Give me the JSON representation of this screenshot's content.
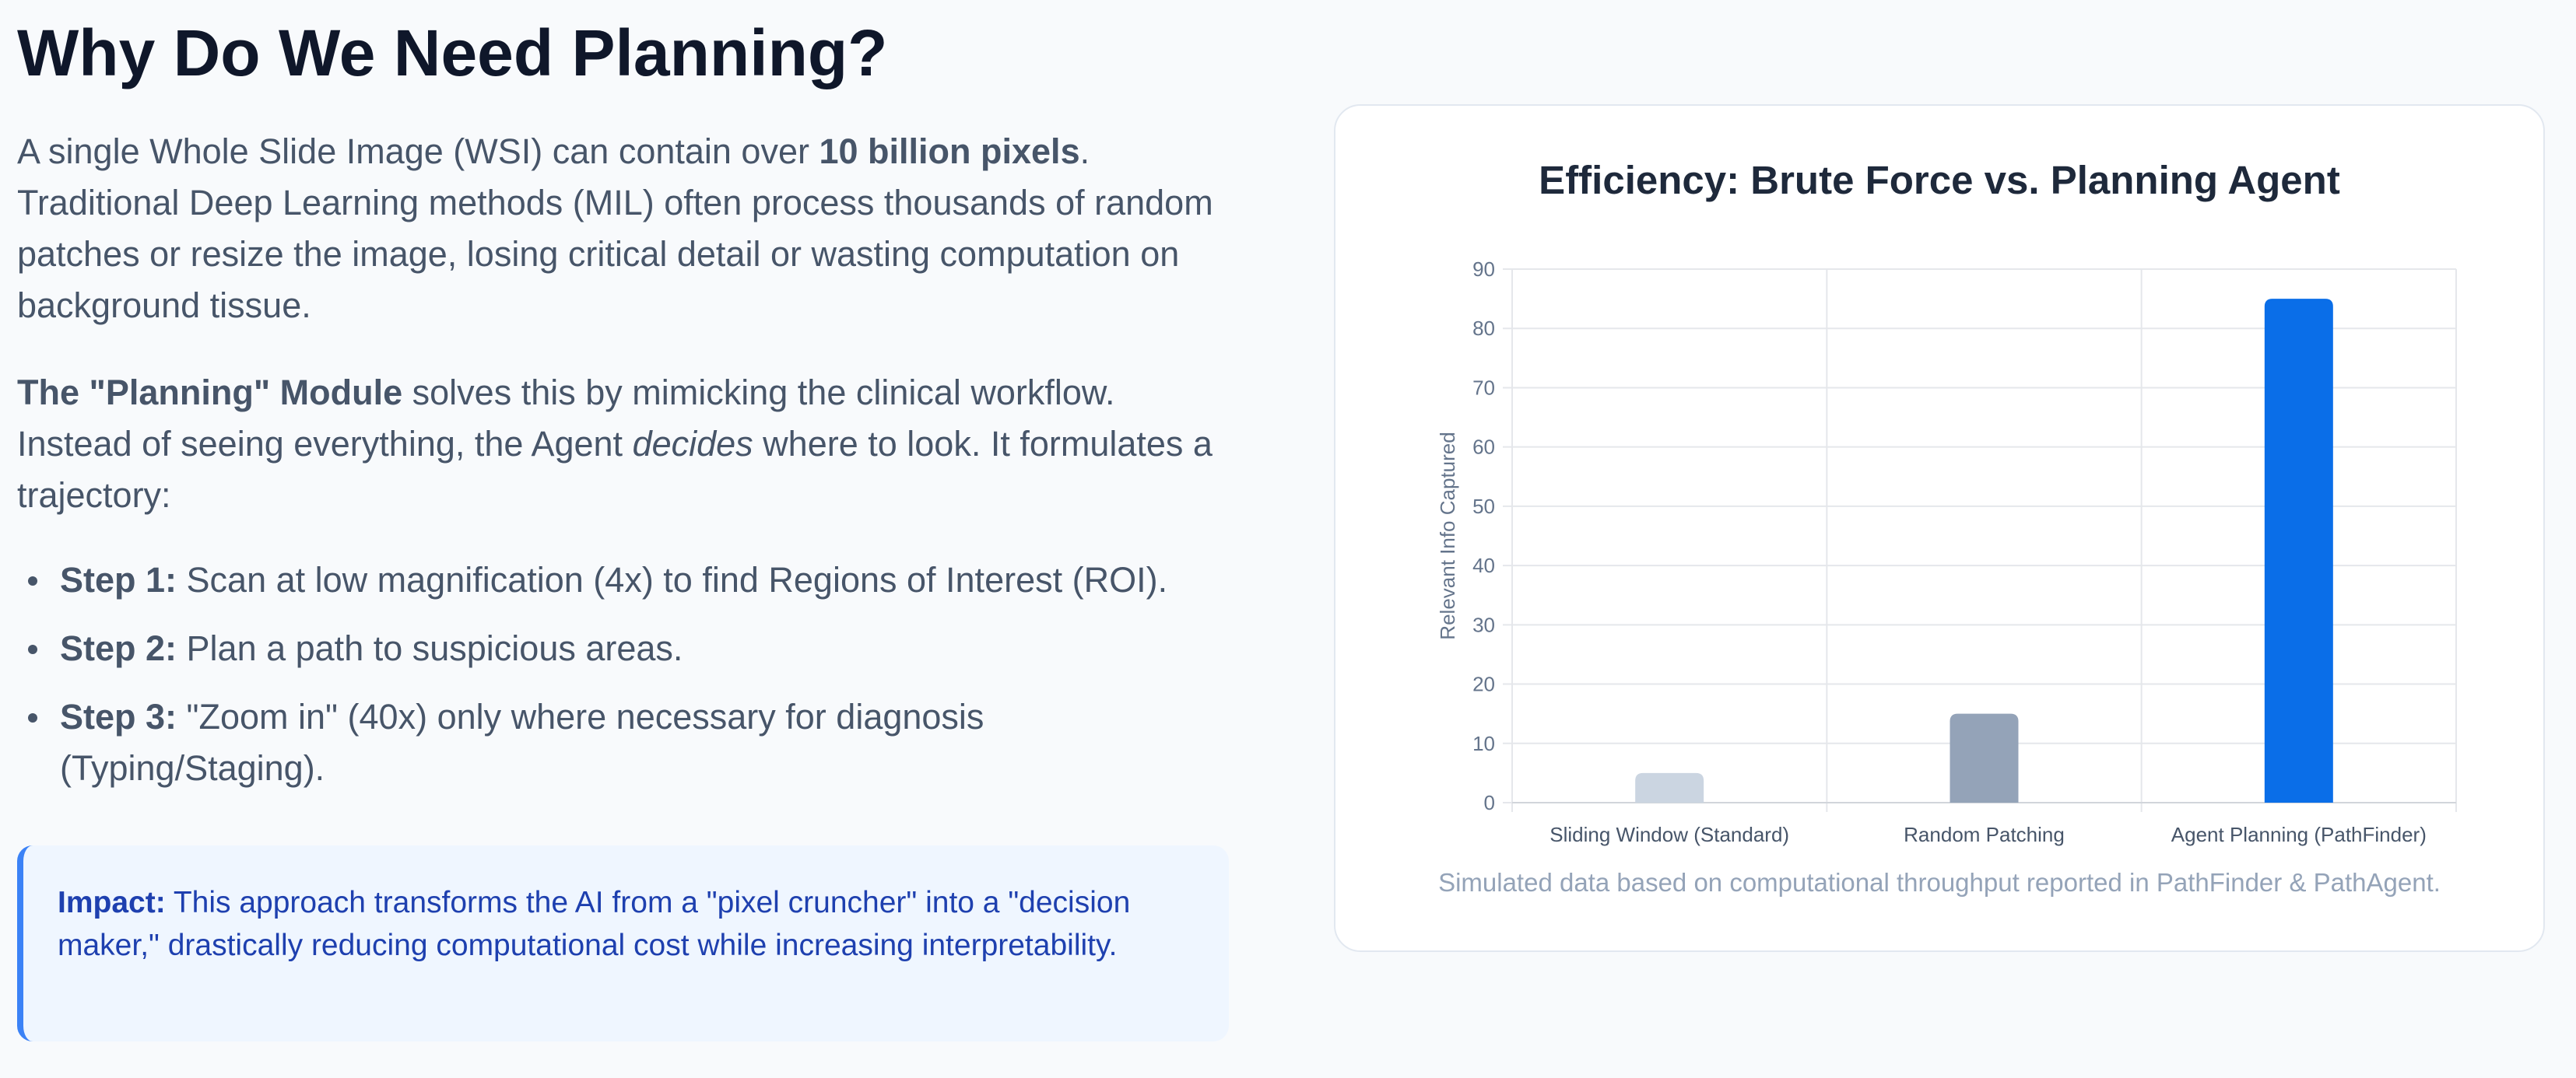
{
  "heading": "Why Do We Need Planning?",
  "intro": {
    "t1": "A single Whole Slide Image (WSI) can contain over ",
    "b1": "10 billion pixels",
    "t2": ". Traditional Deep Learning methods (MIL) often process thousands of random patches or resize the image, losing critical detail or wasting computation on background tissue."
  },
  "planning": {
    "b1": "The \"Planning\" Module",
    "t1": " solves this by mimicking the clinical workflow. Instead of seeing everything, the Agent ",
    "i1": "decides",
    "t2": " where to look. It formulates a trajectory:"
  },
  "steps": [
    {
      "label": "Step 1:",
      "text": " Scan at low magnification (4x) to find Regions of Interest (ROI)."
    },
    {
      "label": "Step 2:",
      "text": " Plan a path to suspicious areas."
    },
    {
      "label": "Step 3:",
      "text": " \"Zoom in\" (40x) only where necessary for diagnosis (Typing/Staging)."
    }
  ],
  "impact": {
    "label": "Impact:",
    "text": " This approach transforms the AI from a \"pixel cruncher\" into a \"decision maker,\" drastically reducing computational cost while increasing interpretability."
  },
  "caption": "Simulated data based on computational throughput reported in PathFinder & PathAgent.",
  "chart_data": {
    "type": "bar",
    "title": "Efficiency: Brute Force vs. Planning Agent",
    "categories": [
      "Sliding Window (Standard)",
      "Random Patching",
      "Agent Planning (PathFinder)"
    ],
    "values": [
      5,
      15,
      85
    ],
    "colors": [
      "#cbd5e1",
      "#94a3b8",
      "#0a6ee8"
    ],
    "xlabel": "",
    "ylabel": "Relevant Info Captured",
    "ylim": [
      0,
      90
    ],
    "yticks": [
      0,
      10,
      20,
      30,
      40,
      50,
      60,
      70,
      80,
      90
    ],
    "grid": true,
    "legend": "none"
  }
}
